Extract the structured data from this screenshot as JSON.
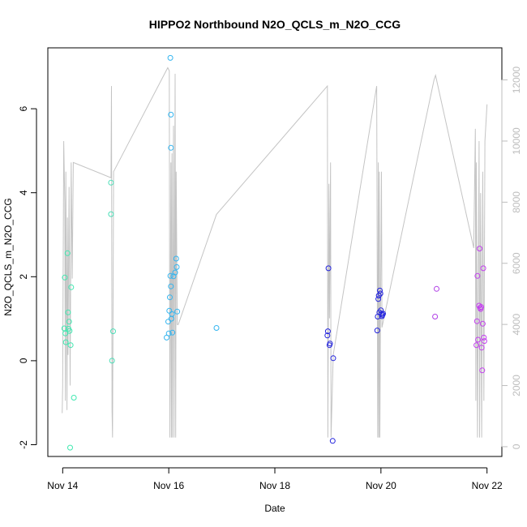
{
  "chart_data": {
    "type": "scatter",
    "title": "HIPPO2 Northbound N2O_QCLS_m_N2O_CCG",
    "xlabel": "Date",
    "ylabel": "N2O_QCLS_m_N2O_CCG",
    "x_unit": "days since Nov 14",
    "xlim": [
      -0.28,
      8.28
    ],
    "ylim": [
      -2.28,
      7.45
    ],
    "y2lim": [
      -320,
      13050
    ],
    "x_ticks": [
      {
        "value": 0,
        "label": "Nov 14"
      },
      {
        "value": 2,
        "label": "Nov 16"
      },
      {
        "value": 4,
        "label": "Nov 18"
      },
      {
        "value": 6,
        "label": "Nov 20"
      },
      {
        "value": 8,
        "label": "Nov 22"
      }
    ],
    "y_ticks": [
      {
        "value": -2,
        "label": "-2"
      },
      {
        "value": 0,
        "label": "0"
      },
      {
        "value": 2,
        "label": "2"
      },
      {
        "value": 4,
        "label": "4"
      },
      {
        "value": 6,
        "label": "6"
      }
    ],
    "y2_ticks": [
      {
        "value": 0,
        "label": "0"
      },
      {
        "value": 2000,
        "label": "2000"
      },
      {
        "value": 4000,
        "label": "4000"
      },
      {
        "value": 6000,
        "label": "6000"
      },
      {
        "value": 8000,
        "label": "8000"
      },
      {
        "value": 10000,
        "label": "10000"
      },
      {
        "value": 12000,
        "label": "12000"
      }
    ],
    "grid": false,
    "legend": "none",
    "series_points": {
      "color_scale": "time-gradient green-to-cyan-to-blue-to-magenta",
      "points": [
        {
          "x": 0.03,
          "y": 0.77,
          "color": "#40e8b0"
        },
        {
          "x": 0.05,
          "y": 0.65,
          "color": "#40e8b0"
        },
        {
          "x": 0.04,
          "y": 1.98,
          "color": "#40e8b0"
        },
        {
          "x": 0.06,
          "y": 0.44,
          "color": "#40e8b0"
        },
        {
          "x": 0.09,
          "y": 2.56,
          "color": "#40e8b0"
        },
        {
          "x": 0.1,
          "y": 1.15,
          "color": "#40e8b0"
        },
        {
          "x": 0.11,
          "y": 0.76,
          "color": "#40e8b0"
        },
        {
          "x": 0.12,
          "y": 0.93,
          "color": "#40e8b0"
        },
        {
          "x": 0.13,
          "y": 0.71,
          "color": "#40e8b0"
        },
        {
          "x": 0.15,
          "y": 0.37,
          "color": "#40e8b0"
        },
        {
          "x": 0.16,
          "y": 1.75,
          "color": "#40e8b0"
        },
        {
          "x": 0.14,
          "y": -2.07,
          "color": "#40e8b0"
        },
        {
          "x": 0.21,
          "y": -0.88,
          "color": "#40e8b0"
        },
        {
          "x": 0.91,
          "y": 4.24,
          "color": "#4cdfb8"
        },
        {
          "x": 0.91,
          "y": 3.49,
          "color": "#4cdfb8"
        },
        {
          "x": 0.93,
          "y": 0.0,
          "color": "#4cdfb8"
        },
        {
          "x": 0.95,
          "y": 0.7,
          "color": "#4cdfb8"
        },
        {
          "x": 2.03,
          "y": 7.21,
          "color": "#33b5f0"
        },
        {
          "x": 2.04,
          "y": 5.86,
          "color": "#33b5f0"
        },
        {
          "x": 2.04,
          "y": 5.07,
          "color": "#33b5f0"
        },
        {
          "x": 1.96,
          "y": 0.55,
          "color": "#33b5f0"
        },
        {
          "x": 1.99,
          "y": 0.93,
          "color": "#33b5f0"
        },
        {
          "x": 2.0,
          "y": 0.65,
          "color": "#33b5f0"
        },
        {
          "x": 2.01,
          "y": 1.19,
          "color": "#33b5f0"
        },
        {
          "x": 2.02,
          "y": 1.51,
          "color": "#33b5f0"
        },
        {
          "x": 2.03,
          "y": 2.02,
          "color": "#33b5f0"
        },
        {
          "x": 2.04,
          "y": 1.77,
          "color": "#33b5f0"
        },
        {
          "x": 2.05,
          "y": 1.0,
          "color": "#33b5f0"
        },
        {
          "x": 2.06,
          "y": 1.11,
          "color": "#33b5f0"
        },
        {
          "x": 2.07,
          "y": 0.67,
          "color": "#33b5f0"
        },
        {
          "x": 2.09,
          "y": 2.01,
          "color": "#33b5f0"
        },
        {
          "x": 2.12,
          "y": 2.1,
          "color": "#33b5f0"
        },
        {
          "x": 2.14,
          "y": 2.43,
          "color": "#33b5f0"
        },
        {
          "x": 2.15,
          "y": 2.23,
          "color": "#33b5f0"
        },
        {
          "x": 2.16,
          "y": 1.17,
          "color": "#33b5f0"
        },
        {
          "x": 2.9,
          "y": 0.78,
          "color": "#33b5f0"
        },
        {
          "x": 4.99,
          "y": 0.6,
          "color": "#2222dd"
        },
        {
          "x": 5.0,
          "y": 0.7,
          "color": "#2222dd"
        },
        {
          "x": 5.01,
          "y": 2.2,
          "color": "#2222dd"
        },
        {
          "x": 5.03,
          "y": 0.37,
          "color": "#2222dd"
        },
        {
          "x": 5.04,
          "y": 0.41,
          "color": "#2222dd"
        },
        {
          "x": 5.1,
          "y": 0.06,
          "color": "#2222dd"
        },
        {
          "x": 5.09,
          "y": -1.91,
          "color": "#2222dd"
        },
        {
          "x": 5.93,
          "y": 0.72,
          "color": "#2222dd"
        },
        {
          "x": 5.94,
          "y": 1.05,
          "color": "#2222dd"
        },
        {
          "x": 5.95,
          "y": 1.47,
          "color": "#2222dd"
        },
        {
          "x": 5.96,
          "y": 1.55,
          "color": "#2222dd"
        },
        {
          "x": 5.97,
          "y": 1.15,
          "color": "#2222dd"
        },
        {
          "x": 5.98,
          "y": 1.67,
          "color": "#2222dd"
        },
        {
          "x": 5.99,
          "y": 1.6,
          "color": "#2222dd"
        },
        {
          "x": 6.0,
          "y": 1.2,
          "color": "#2222dd"
        },
        {
          "x": 6.01,
          "y": 1.12,
          "color": "#2222dd"
        },
        {
          "x": 6.02,
          "y": 1.06,
          "color": "#2222dd"
        },
        {
          "x": 6.03,
          "y": 1.09,
          "color": "#2222dd"
        },
        {
          "x": 6.04,
          "y": 1.12,
          "color": "#2222dd"
        },
        {
          "x": 7.02,
          "y": 1.05,
          "color": "#b03ee6"
        },
        {
          "x": 7.05,
          "y": 1.71,
          "color": "#b03ee6"
        },
        {
          "x": 7.8,
          "y": 0.37,
          "color": "#c43ef0"
        },
        {
          "x": 7.81,
          "y": 0.94,
          "color": "#c43ef0"
        },
        {
          "x": 7.82,
          "y": 2.02,
          "color": "#c43ef0"
        },
        {
          "x": 7.83,
          "y": 0.5,
          "color": "#c43ef0"
        },
        {
          "x": 7.85,
          "y": 1.31,
          "color": "#c43ef0"
        },
        {
          "x": 7.86,
          "y": 2.67,
          "color": "#c43ef0"
        },
        {
          "x": 7.87,
          "y": 1.26,
          "color": "#c43ef0"
        },
        {
          "x": 7.88,
          "y": 1.23,
          "color": "#c43ef0"
        },
        {
          "x": 7.89,
          "y": 1.28,
          "color": "#c43ef0"
        },
        {
          "x": 7.9,
          "y": 0.31,
          "color": "#c43ef0"
        },
        {
          "x": 7.91,
          "y": -0.23,
          "color": "#c43ef0"
        },
        {
          "x": 7.92,
          "y": 0.88,
          "color": "#c43ef0"
        },
        {
          "x": 7.93,
          "y": 2.2,
          "color": "#c43ef0"
        },
        {
          "x": 7.94,
          "y": 0.55,
          "color": "#c43ef0"
        },
        {
          "x": 7.95,
          "y": 0.47,
          "color": "#c43ef0"
        }
      ]
    },
    "series_altitude": {
      "axis": "right",
      "color": "#c4c4c4",
      "points": [
        [
          -0.01,
          1100
        ],
        [
          0.0,
          2000
        ],
        [
          0.02,
          10000
        ],
        [
          0.04,
          8000
        ],
        [
          0.05,
          1500
        ],
        [
          0.06,
          9000
        ],
        [
          0.08,
          1200
        ],
        [
          0.09,
          7500
        ],
        [
          0.1,
          3000
        ],
        [
          0.12,
          8500
        ],
        [
          0.14,
          2000
        ],
        [
          0.16,
          9300
        ],
        [
          0.18,
          5500
        ],
        [
          0.2,
          9300
        ],
        [
          0.91,
          8800
        ],
        [
          0.92,
          11800
        ],
        [
          0.93,
          1200
        ],
        [
          0.94,
          300
        ],
        [
          0.96,
          9000
        ],
        [
          1.98,
          12400
        ],
        [
          2.01,
          12300
        ],
        [
          2.02,
          300
        ],
        [
          2.04,
          9300
        ],
        [
          2.05,
          300
        ],
        [
          2.06,
          9600
        ],
        [
          2.07,
          300
        ],
        [
          2.09,
          10500
        ],
        [
          2.1,
          300
        ],
        [
          2.12,
          12200
        ],
        [
          2.13,
          300
        ],
        [
          2.14,
          9000
        ],
        [
          2.16,
          4000
        ],
        [
          2.18,
          4000
        ],
        [
          2.9,
          7600
        ],
        [
          4.99,
          11800
        ],
        [
          5.0,
          300
        ],
        [
          5.02,
          8600
        ],
        [
          5.03,
          4200
        ],
        [
          5.05,
          9300
        ],
        [
          5.06,
          300
        ],
        [
          5.1,
          3000
        ],
        [
          5.92,
          11800
        ],
        [
          5.94,
          300
        ],
        [
          5.95,
          9300
        ],
        [
          5.96,
          300
        ],
        [
          5.97,
          9000
        ],
        [
          5.98,
          300
        ],
        [
          5.99,
          4000
        ],
        [
          6.01,
          9000
        ],
        [
          6.02,
          3900
        ],
        [
          7.0,
          12000
        ],
        [
          7.03,
          12150
        ],
        [
          7.75,
          6500
        ],
        [
          7.78,
          10400
        ],
        [
          7.79,
          1500
        ],
        [
          7.8,
          9300
        ],
        [
          7.82,
          300
        ],
        [
          7.85,
          10000
        ],
        [
          7.86,
          300
        ],
        [
          7.88,
          8300
        ],
        [
          7.9,
          300
        ],
        [
          7.92,
          9000
        ],
        [
          7.94,
          1500
        ],
        [
          7.96,
          10000
        ],
        [
          8.0,
          11200
        ]
      ]
    }
  }
}
